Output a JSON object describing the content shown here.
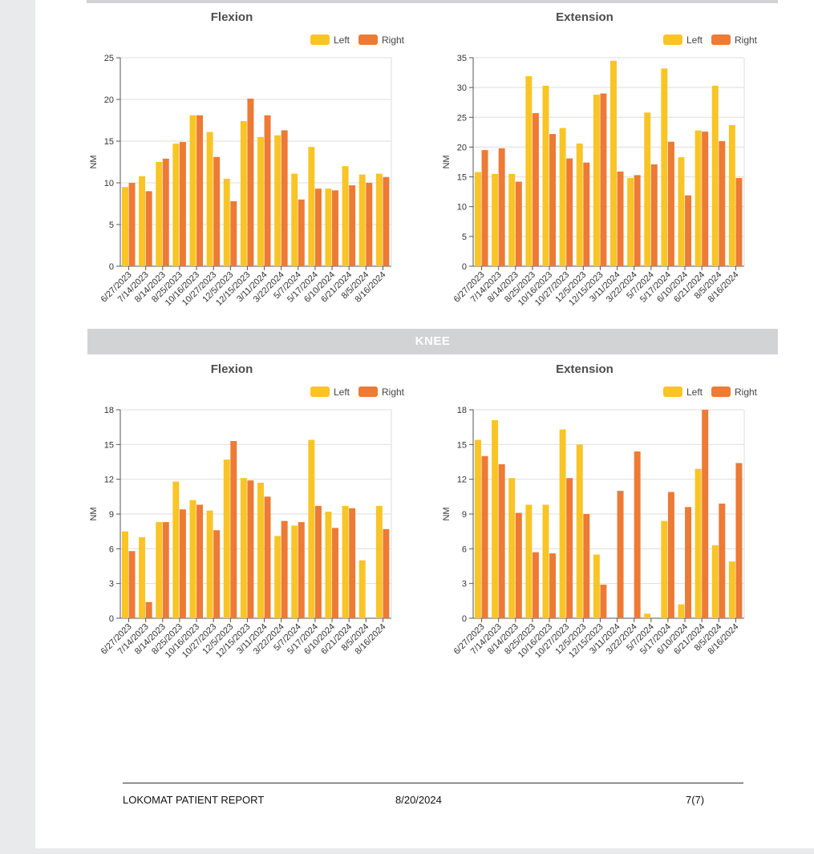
{
  "section_label": "KNEE",
  "footer": {
    "title": "LOKOMAT PATIENT REPORT",
    "date": "8/20/2024",
    "page": "7(7)"
  },
  "colors": {
    "left": "#f9c425",
    "right": "#ed7a35",
    "grid": "#dddddd",
    "axis": "#555555"
  },
  "chart_data": [
    {
      "type": "bar",
      "title": "Flexion",
      "ylabel": "NM",
      "ylim": [
        0,
        25
      ],
      "yticks": [
        0,
        5,
        10,
        15,
        20,
        25
      ],
      "legend": "top-right",
      "categories": [
        "6/27/2023",
        "7/14/2023",
        "8/14/2023",
        "8/25/2023",
        "10/16/2023",
        "10/27/2023",
        "12/5/2023",
        "12/15/2023",
        "3/11/2024",
        "3/22/2024",
        "5/7/2024",
        "5/17/2024",
        "6/10/2024",
        "6/21/2024",
        "8/5/2024",
        "8/16/2024"
      ],
      "series": [
        {
          "name": "Left",
          "values": [
            9.5,
            10.8,
            12.5,
            14.7,
            18.1,
            16.1,
            10.5,
            17.4,
            15.5,
            15.7,
            11.1,
            14.3,
            9.3,
            12.0,
            11.0,
            11.1
          ]
        },
        {
          "name": "Right",
          "values": [
            10.0,
            9.0,
            12.9,
            14.9,
            18.1,
            13.1,
            7.8,
            20.1,
            18.1,
            16.3,
            8.0,
            9.3,
            9.1,
            9.7,
            10.0,
            10.7
          ]
        }
      ]
    },
    {
      "type": "bar",
      "title": "Extension",
      "ylabel": "NM",
      "ylim": [
        0,
        35
      ],
      "yticks": [
        0,
        5,
        10,
        15,
        20,
        25,
        30,
        35
      ],
      "legend": "top-right",
      "categories": [
        "6/27/2023",
        "7/14/2023",
        "8/14/2023",
        "8/25/2023",
        "10/16/2023",
        "10/27/2023",
        "12/5/2023",
        "12/15/2023",
        "3/11/2024",
        "3/22/2024",
        "5/7/2024",
        "5/17/2024",
        "6/10/2024",
        "6/21/2024",
        "8/5/2024",
        "8/16/2024"
      ],
      "series": [
        {
          "name": "Left",
          "values": [
            15.8,
            15.5,
            15.5,
            31.9,
            30.3,
            23.2,
            20.6,
            28.8,
            34.5,
            14.8,
            25.8,
            33.2,
            18.3,
            22.8,
            30.3,
            23.7
          ]
        },
        {
          "name": "Right",
          "values": [
            19.5,
            19.8,
            14.2,
            25.7,
            22.2,
            18.1,
            17.4,
            29.0,
            15.9,
            15.3,
            17.1,
            20.9,
            11.9,
            22.6,
            21.0,
            14.8
          ]
        }
      ]
    },
    {
      "type": "bar",
      "title": "Flexion",
      "ylabel": "NM",
      "ylim": [
        0,
        18
      ],
      "yticks": [
        0,
        3,
        6,
        9,
        12,
        15,
        18
      ],
      "legend": "top-right",
      "categories": [
        "6/27/2023",
        "7/14/2023",
        "8/14/2023",
        "8/25/2023",
        "10/16/2023",
        "10/27/2023",
        "12/5/2023",
        "12/15/2023",
        "3/11/2024",
        "3/22/2024",
        "5/7/2024",
        "5/17/2024",
        "6/10/2024",
        "6/21/2024",
        "8/5/2024",
        "8/16/2024"
      ],
      "series": [
        {
          "name": "Left",
          "values": [
            7.5,
            7.0,
            8.3,
            11.8,
            10.2,
            9.3,
            13.7,
            12.1,
            11.7,
            7.1,
            8.0,
            15.4,
            9.2,
            9.7,
            5.0,
            9.7
          ]
        },
        {
          "name": "Right",
          "values": [
            5.8,
            1.4,
            8.3,
            9.4,
            9.8,
            7.6,
            15.3,
            11.9,
            10.5,
            8.4,
            8.3,
            9.7,
            7.8,
            9.5,
            0,
            7.7
          ]
        }
      ]
    },
    {
      "type": "bar",
      "title": "Extension",
      "ylabel": "NM",
      "ylim": [
        0,
        18
      ],
      "yticks": [
        0,
        3,
        6,
        9,
        12,
        15,
        18
      ],
      "legend": "top-right",
      "categories": [
        "6/27/2023",
        "7/14/2023",
        "8/14/2023",
        "8/25/2023",
        "10/16/2023",
        "10/27/2023",
        "12/5/2023",
        "12/15/2023",
        "3/11/2024",
        "3/22/2024",
        "5/7/2024",
        "5/17/2024",
        "6/10/2024",
        "6/21/2024",
        "8/5/2024",
        "8/16/2024"
      ],
      "series": [
        {
          "name": "Left",
          "values": [
            15.4,
            17.1,
            12.1,
            9.8,
            9.8,
            16.3,
            15.0,
            5.5,
            0,
            0,
            0.4,
            8.4,
            1.2,
            12.9,
            6.3,
            4.9
          ]
        },
        {
          "name": "Right",
          "values": [
            14.0,
            13.3,
            9.1,
            5.7,
            5.6,
            12.1,
            9.0,
            2.9,
            11.0,
            14.4,
            0,
            10.9,
            9.6,
            18.0,
            9.9,
            13.4
          ]
        }
      ]
    }
  ]
}
